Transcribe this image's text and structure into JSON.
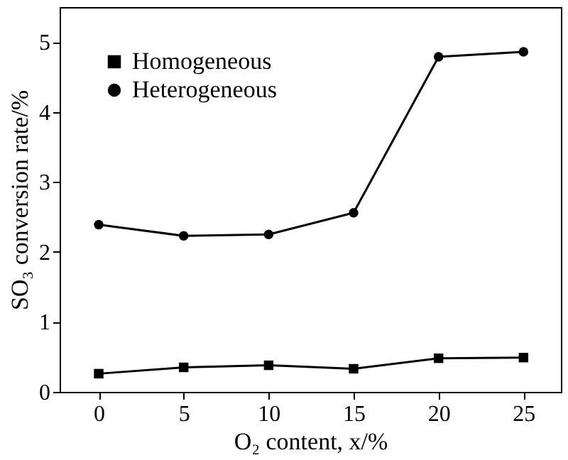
{
  "chart_data": {
    "type": "line",
    "xlabel": "O₂ content, x/%",
    "ylabel": "SO₃ conversion rate/%",
    "x": [
      0,
      5,
      10,
      15,
      20,
      25
    ],
    "series": [
      {
        "name": "Homogeneous",
        "color": "#000000",
        "marker": "square",
        "values": [
          0.26,
          0.35,
          0.38,
          0.33,
          0.48,
          0.49
        ]
      },
      {
        "name": "Heterogeneous",
        "color": "#000000",
        "marker": "circle",
        "values": [
          2.39,
          2.23,
          2.25,
          2.56,
          4.79,
          4.86
        ]
      }
    ],
    "xlim": [
      -2.3,
      27.2
    ],
    "ylim": [
      0,
      5.5
    ],
    "xticks": [
      0,
      5,
      10,
      15,
      20,
      25
    ],
    "yticks": [
      0,
      1,
      2,
      3,
      4,
      5
    ],
    "legend": "top left",
    "grid": false,
    "line_style": "solid"
  }
}
